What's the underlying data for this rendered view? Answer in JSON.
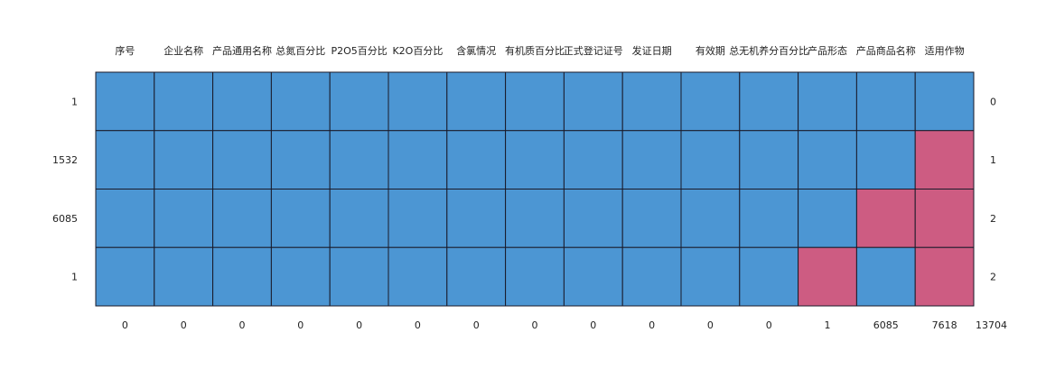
{
  "chart_data": {
    "type": "heatmap",
    "columns": [
      "序号",
      "企业名称",
      "产品通用名称",
      "总氮百分比",
      "P2O5百分比",
      "K2O百分比",
      "含氯情况",
      "有机质百分比",
      "正式登记证号",
      "发证日期",
      "有效期",
      "总无机养分百分比",
      "产品形态",
      "产品商品名称",
      "适用作物"
    ],
    "row_counts": [
      "1",
      "1532",
      "6085",
      "1"
    ],
    "row_missing_totals": [
      "0",
      "1",
      "2",
      "2"
    ],
    "column_missing_counts": [
      "0",
      "0",
      "0",
      "0",
      "0",
      "0",
      "0",
      "0",
      "0",
      "0",
      "0",
      "0",
      "1",
      "6085",
      "7618"
    ],
    "total_missing": "13704",
    "matrix": [
      [
        0,
        0,
        0,
        0,
        0,
        0,
        0,
        0,
        0,
        0,
        0,
        0,
        0,
        0,
        0
      ],
      [
        0,
        0,
        0,
        0,
        0,
        0,
        0,
        0,
        0,
        0,
        0,
        0,
        0,
        0,
        1
      ],
      [
        0,
        0,
        0,
        0,
        0,
        0,
        0,
        0,
        0,
        0,
        0,
        0,
        0,
        1,
        1
      ],
      [
        0,
        0,
        0,
        0,
        0,
        0,
        0,
        0,
        0,
        0,
        0,
        0,
        1,
        0,
        1
      ]
    ],
    "colors": {
      "present": "#4c96d3",
      "missing": "#cd5c82",
      "border": "#1a1a2a"
    },
    "grid": true,
    "legend": "none"
  }
}
